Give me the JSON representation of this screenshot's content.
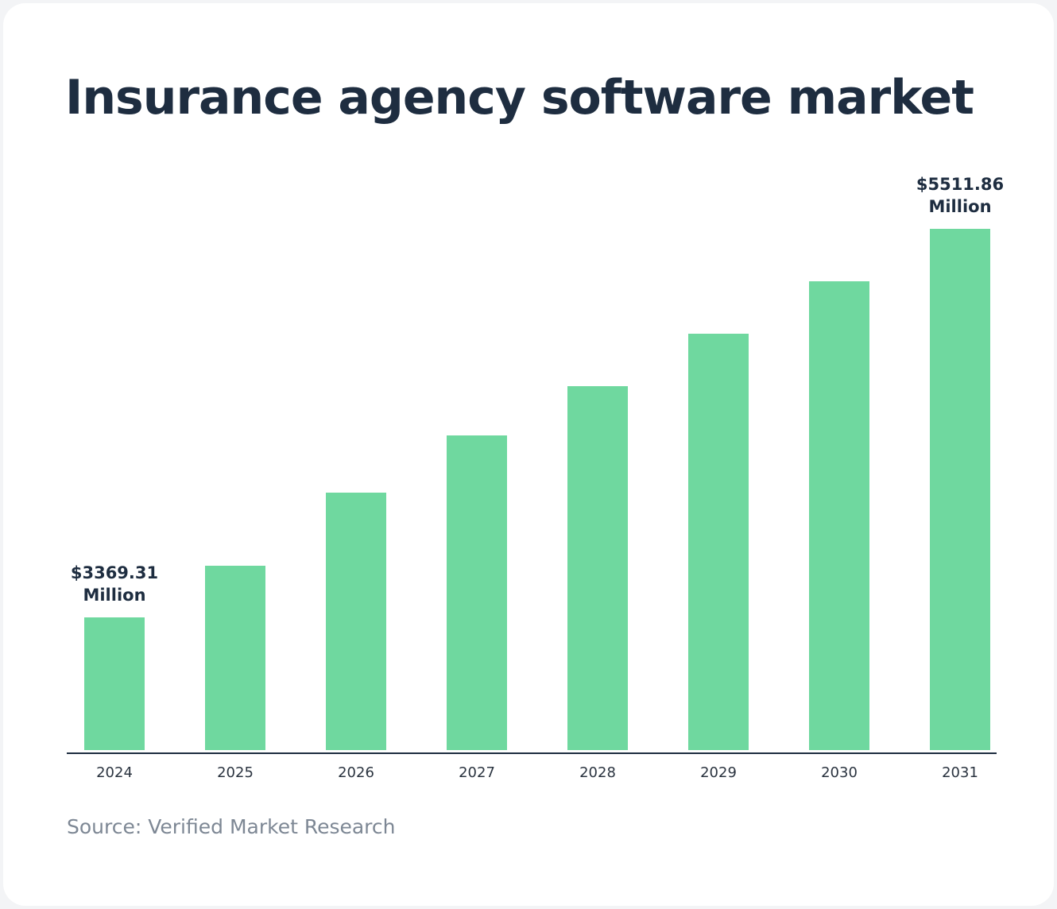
{
  "chart_data": {
    "type": "bar",
    "title": "Insurance agency software market",
    "categories": [
      "2024",
      "2025",
      "2026",
      "2027",
      "2028",
      "2029",
      "2030",
      "2031"
    ],
    "values": [
      3369.31,
      3658,
      4060,
      4375,
      4646,
      4935,
      5223,
      5511.86
    ],
    "value_labels": [
      "$3369.31 Million",
      null,
      null,
      null,
      null,
      null,
      null,
      "$5511.86 Million"
    ],
    "color": "#6fd89f",
    "ylim": [
      2640,
      5600
    ],
    "source": "Source: Verified Market Research"
  }
}
